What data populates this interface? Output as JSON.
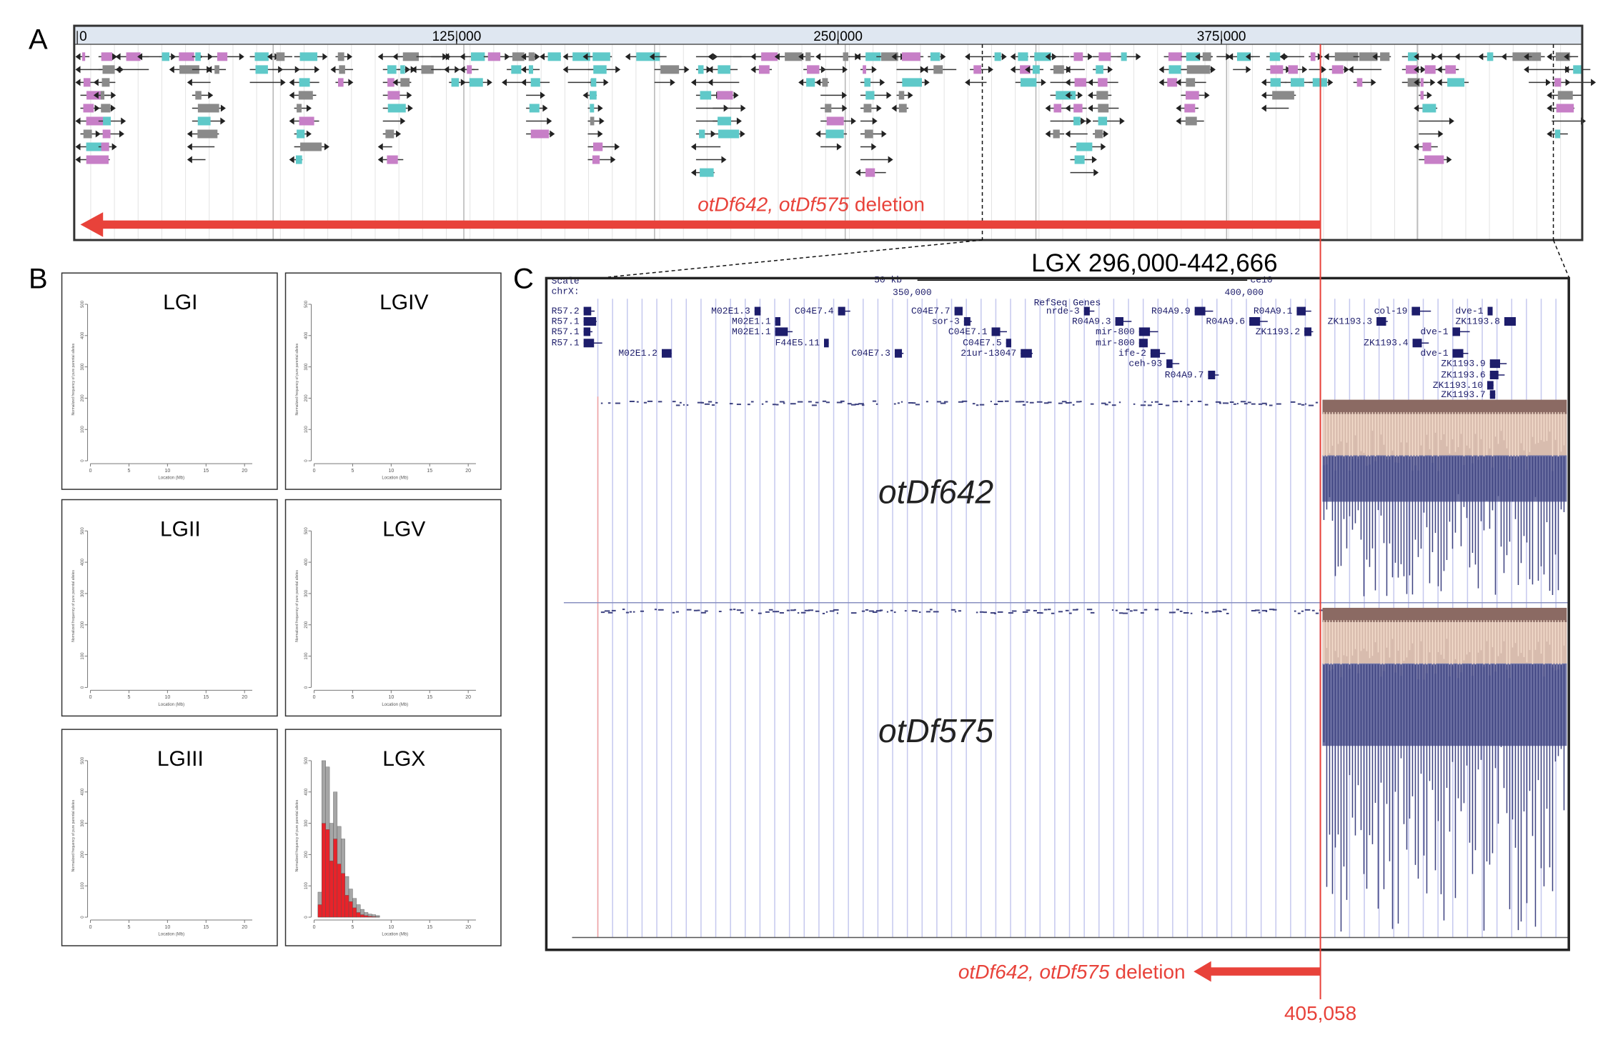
{
  "panel_labels": [
    "A",
    "B",
    "C"
  ],
  "panel_a": {
    "axis_labels": [
      "0",
      "125,000",
      "250,000",
      "375,000"
    ],
    "deletion_italic": "otDf642, otDf575",
    "deletion_text": "deletion"
  },
  "chart_data": [
    {
      "type": "histogram",
      "title": "LGI",
      "xlabel": "Location (Mb)",
      "ylabel": "Normalized frequency of pure parental alleles",
      "xlim": [
        0,
        21
      ],
      "ylim": [
        0,
        520
      ],
      "xticks": [
        0,
        5,
        10,
        15,
        20
      ],
      "yticks": [
        0,
        100,
        200,
        300,
        400,
        500
      ],
      "bins": [],
      "series": []
    },
    {
      "type": "histogram",
      "title": "LGIV",
      "xlabel": "Location (Mb)",
      "ylabel": "Normalized frequency of pure parental alleles",
      "xlim": [
        0,
        21
      ],
      "ylim": [
        0,
        520
      ],
      "xticks": [
        0,
        5,
        10,
        15,
        20
      ],
      "yticks": [
        0,
        100,
        200,
        300,
        400,
        500
      ],
      "bins": [],
      "series": []
    },
    {
      "type": "histogram",
      "title": "LGII",
      "xlabel": "Location (Mb)",
      "ylabel": "Normalized frequency of pure parental alleles",
      "xlim": [
        0,
        21
      ],
      "ylim": [
        0,
        520
      ],
      "xticks": [
        0,
        5,
        10,
        15,
        20
      ],
      "yticks": [
        0,
        100,
        200,
        300,
        400,
        500
      ],
      "bins": [],
      "series": []
    },
    {
      "type": "histogram",
      "title": "LGV",
      "xlabel": "Location (Mb)",
      "ylabel": "Normalized frequency of pure parental alleles",
      "xlim": [
        0,
        21
      ],
      "ylim": [
        0,
        520
      ],
      "xticks": [
        0,
        5,
        10,
        15,
        20
      ],
      "yticks": [
        0,
        100,
        200,
        300,
        400,
        500
      ],
      "bins": [],
      "series": []
    },
    {
      "type": "histogram",
      "title": "LGIII",
      "xlabel": "Location (Mb)",
      "ylabel": "Normalized frequency of pure parental alleles",
      "xlim": [
        0,
        21
      ],
      "ylim": [
        0,
        520
      ],
      "xticks": [
        0,
        5,
        10,
        15,
        20
      ],
      "yticks": [
        0,
        100,
        200,
        300,
        400,
        500
      ],
      "bins": [],
      "series": []
    },
    {
      "type": "histogram",
      "title": "LGX",
      "xlabel": "Location (Mb)",
      "ylabel": "Normalized frequency of pure parental alleles",
      "xlim": [
        0,
        21
      ],
      "ylim": [
        0,
        520
      ],
      "xticks": [
        0,
        5,
        10,
        15,
        20
      ],
      "yticks": [
        0,
        100,
        200,
        300,
        400,
        500
      ],
      "bins": [
        0.5,
        1,
        1.5,
        2,
        2.5,
        3,
        3.5,
        4,
        4.5,
        5,
        5.5,
        6,
        6.5,
        7,
        7.5,
        8,
        8.5
      ],
      "series": [
        {
          "color": "#a6a6a6",
          "values": [
            80,
            500,
            480,
            300,
            400,
            290,
            250,
            130,
            90,
            60,
            40,
            25,
            15,
            10,
            8,
            5
          ]
        },
        {
          "color": "#e8232a",
          "values": [
            40,
            300,
            280,
            180,
            250,
            170,
            140,
            70,
            50,
            30,
            15,
            8,
            5,
            3,
            2,
            1
          ]
        }
      ]
    }
  ],
  "panel_c": {
    "title": "LGX 296,000-442,666",
    "ruler": {
      "scale": "Scale",
      "chrom": "chrX:",
      "size": "50 kb",
      "pos1": "350,000",
      "pos2": "400,000",
      "assembly": "ce10",
      "track": "RefSeq Genes"
    },
    "genes": [
      "R57.2",
      "R57.1",
      "R57.1",
      "R57.1",
      "M02E1.2",
      "M02E1.3",
      "M02E1.1",
      "M02E1.1",
      "F44E5.11",
      "C04E7.4",
      "C04E7.7",
      "sor-3",
      "C04E7.1",
      "C04E7.5",
      "C04E7.3",
      "21ur-13047",
      "nrde-3",
      "R04A9.3",
      "mir-800",
      "mir-800",
      "ife-2",
      "ceh-93",
      "R04A9.7",
      "R04A9.9",
      "R04A9.6",
      "R04A9.1",
      "ZK1193.2",
      "col-19",
      "ZK1193.3",
      "ZK1193.8",
      "dve-1",
      "dve-1",
      "ZK1193.4",
      "dve-1",
      "ZK1193.9",
      "ZK1193.6",
      "ZK1193.10",
      "ZK1193.7"
    ],
    "tracks": [
      "otDf642",
      "otDf575"
    ],
    "deletion_italic": "otDf642, otDf575",
    "deletion_text": "deletion",
    "breakpoint": "405,058"
  }
}
